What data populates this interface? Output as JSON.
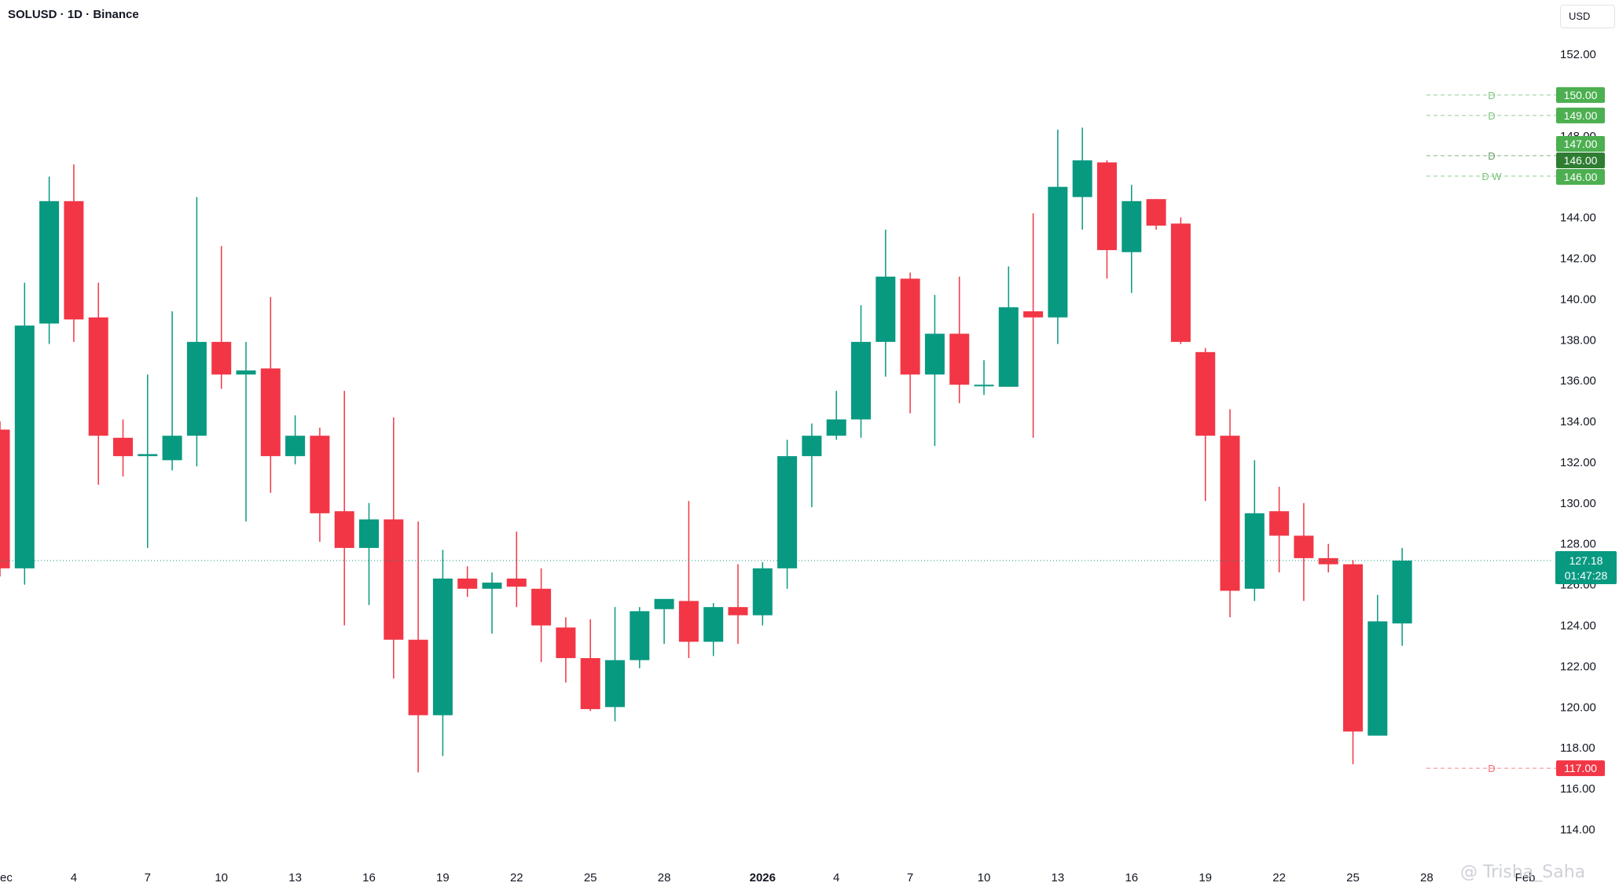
{
  "header": {
    "symbol_line": "SOLUSD · 1D · Binance"
  },
  "price_scale": {
    "currency_label": "USD"
  },
  "watermark": {
    "text": "@ Trisha_Saha"
  },
  "colors": {
    "up": "#089981",
    "down": "#f23645",
    "alert_green": "#4caf50",
    "alert_green_dark": "#2e7d32",
    "alert_red": "#f23645",
    "text": "#131722",
    "axis_text": "#131722"
  },
  "chart_data": {
    "type": "candlestick",
    "symbol": "SOLUSD",
    "interval": "1D",
    "exchange": "Binance",
    "ylim": [
      113,
      154
    ],
    "y_ticks": [
      "114.00",
      "116.00",
      "118.00",
      "120.00",
      "122.00",
      "124.00",
      "126.00",
      "128.00",
      "130.00",
      "132.00",
      "134.00",
      "136.00",
      "138.00",
      "140.00",
      "142.00",
      "144.00",
      "146.00",
      "148.00",
      "150.00",
      "152.00"
    ],
    "x_ticks": [
      {
        "i": 0.5,
        "label": "ec"
      },
      {
        "i": 3,
        "label": "4"
      },
      {
        "i": 6,
        "label": "7"
      },
      {
        "i": 9,
        "label": "10"
      },
      {
        "i": 12,
        "label": "13"
      },
      {
        "i": 15,
        "label": "16"
      },
      {
        "i": 18,
        "label": "19"
      },
      {
        "i": 21,
        "label": "22"
      },
      {
        "i": 24,
        "label": "25"
      },
      {
        "i": 27,
        "label": "28"
      },
      {
        "i": 31,
        "label": "2026"
      },
      {
        "i": 34,
        "label": "4"
      },
      {
        "i": 37,
        "label": "7"
      },
      {
        "i": 40,
        "label": "10"
      },
      {
        "i": 43,
        "label": "13"
      },
      {
        "i": 46,
        "label": "16"
      },
      {
        "i": 49,
        "label": "19"
      },
      {
        "i": 52,
        "label": "22"
      },
      {
        "i": 55,
        "label": "25"
      },
      {
        "i": 58,
        "label": "28"
      },
      {
        "i": 62,
        "label": "Feb"
      }
    ],
    "candles": [
      {
        "o": 133.6,
        "h": 134.0,
        "l": 126.4,
        "c": 126.8
      },
      {
        "o": 126.8,
        "h": 140.8,
        "l": 126.0,
        "c": 138.7
      },
      {
        "o": 138.8,
        "h": 146.0,
        "l": 137.8,
        "c": 144.8
      },
      {
        "o": 144.8,
        "h": 146.6,
        "l": 137.9,
        "c": 139.0
      },
      {
        "o": 139.1,
        "h": 140.8,
        "l": 130.9,
        "c": 133.3
      },
      {
        "o": 133.2,
        "h": 134.1,
        "l": 131.3,
        "c": 132.3
      },
      {
        "o": 132.3,
        "h": 136.3,
        "l": 127.8,
        "c": 132.4
      },
      {
        "o": 132.1,
        "h": 139.4,
        "l": 131.6,
        "c": 133.3
      },
      {
        "o": 133.3,
        "h": 145.0,
        "l": 131.8,
        "c": 137.9
      },
      {
        "o": 137.9,
        "h": 142.6,
        "l": 135.6,
        "c": 136.3
      },
      {
        "o": 136.3,
        "h": 137.9,
        "l": 129.1,
        "c": 136.5
      },
      {
        "o": 136.6,
        "h": 140.1,
        "l": 130.5,
        "c": 132.3
      },
      {
        "o": 132.3,
        "h": 134.3,
        "l": 131.9,
        "c": 133.3
      },
      {
        "o": 133.3,
        "h": 133.7,
        "l": 128.1,
        "c": 129.5
      },
      {
        "o": 129.6,
        "h": 135.5,
        "l": 124.0,
        "c": 127.8
      },
      {
        "o": 127.8,
        "h": 130.0,
        "l": 125.0,
        "c": 129.2
      },
      {
        "o": 129.2,
        "h": 134.2,
        "l": 121.4,
        "c": 123.3
      },
      {
        "o": 123.3,
        "h": 129.1,
        "l": 116.8,
        "c": 119.6
      },
      {
        "o": 119.6,
        "h": 127.7,
        "l": 117.6,
        "c": 126.3
      },
      {
        "o": 126.3,
        "h": 126.9,
        "l": 125.4,
        "c": 125.8
      },
      {
        "o": 125.8,
        "h": 126.6,
        "l": 123.6,
        "c": 126.1
      },
      {
        "o": 126.3,
        "h": 128.6,
        "l": 124.9,
        "c": 125.9
      },
      {
        "o": 125.8,
        "h": 126.8,
        "l": 122.2,
        "c": 124.0
      },
      {
        "o": 123.9,
        "h": 124.4,
        "l": 121.2,
        "c": 122.4
      },
      {
        "o": 122.4,
        "h": 124.3,
        "l": 119.8,
        "c": 119.9
      },
      {
        "o": 120.0,
        "h": 124.9,
        "l": 119.3,
        "c": 122.3
      },
      {
        "o": 122.3,
        "h": 124.9,
        "l": 121.9,
        "c": 124.7
      },
      {
        "o": 124.8,
        "h": 125.3,
        "l": 123.1,
        "c": 125.3
      },
      {
        "o": 125.2,
        "h": 130.1,
        "l": 122.4,
        "c": 123.2
      },
      {
        "o": 123.2,
        "h": 125.1,
        "l": 122.5,
        "c": 124.9
      },
      {
        "o": 124.9,
        "h": 127.0,
        "l": 123.1,
        "c": 124.5
      },
      {
        "o": 124.5,
        "h": 127.1,
        "l": 124.0,
        "c": 126.8
      },
      {
        "o": 126.8,
        "h": 133.1,
        "l": 125.8,
        "c": 132.3
      },
      {
        "o": 132.3,
        "h": 133.9,
        "l": 129.8,
        "c": 133.3
      },
      {
        "o": 133.3,
        "h": 135.5,
        "l": 133.1,
        "c": 134.1
      },
      {
        "o": 134.1,
        "h": 139.7,
        "l": 133.2,
        "c": 137.9
      },
      {
        "o": 137.9,
        "h": 143.4,
        "l": 136.2,
        "c": 141.1
      },
      {
        "o": 141.0,
        "h": 141.3,
        "l": 134.4,
        "c": 136.3
      },
      {
        "o": 136.3,
        "h": 140.2,
        "l": 132.8,
        "c": 138.3
      },
      {
        "o": 138.3,
        "h": 141.1,
        "l": 134.9,
        "c": 135.8
      },
      {
        "o": 135.8,
        "h": 137.0,
        "l": 135.3,
        "c": 135.8
      },
      {
        "o": 135.7,
        "h": 141.6,
        "l": 135.7,
        "c": 139.6
      },
      {
        "o": 139.4,
        "h": 144.2,
        "l": 133.2,
        "c": 139.1
      },
      {
        "o": 139.1,
        "h": 148.3,
        "l": 137.8,
        "c": 145.5
      },
      {
        "o": 145.0,
        "h": 148.4,
        "l": 143.4,
        "c": 146.8
      },
      {
        "o": 146.7,
        "h": 146.8,
        "l": 141.0,
        "c": 142.4
      },
      {
        "o": 142.3,
        "h": 145.6,
        "l": 140.3,
        "c": 144.8
      },
      {
        "o": 144.9,
        "h": 144.9,
        "l": 143.4,
        "c": 143.6
      },
      {
        "o": 143.7,
        "h": 144.0,
        "l": 137.8,
        "c": 137.9
      },
      {
        "o": 137.4,
        "h": 137.6,
        "l": 130.1,
        "c": 133.3
      },
      {
        "o": 133.3,
        "h": 134.6,
        "l": 124.4,
        "c": 125.7
      },
      {
        "o": 125.8,
        "h": 132.1,
        "l": 125.2,
        "c": 129.5
      },
      {
        "o": 129.6,
        "h": 130.8,
        "l": 126.6,
        "c": 128.4
      },
      {
        "o": 128.4,
        "h": 130.0,
        "l": 125.2,
        "c": 127.3
      },
      {
        "o": 127.3,
        "h": 128.0,
        "l": 126.6,
        "c": 127.0
      },
      {
        "o": 127.0,
        "h": 127.2,
        "l": 117.2,
        "c": 118.8
      },
      {
        "o": 118.6,
        "h": 125.5,
        "l": 118.6,
        "c": 124.2
      },
      {
        "o": 124.1,
        "h": 127.8,
        "l": 123.0,
        "c": 127.18
      }
    ],
    "last_price": {
      "value": 127.18,
      "label": "127.18",
      "countdown": "01:47:28"
    },
    "alert_levels": [
      {
        "value": 150.0,
        "label": "150.00",
        "tag": "D",
        "kind": "green"
      },
      {
        "value": 149.0,
        "label": "149.00",
        "tag": "D",
        "kind": "green"
      },
      {
        "value": 147.0,
        "label": "147.00",
        "tag": "",
        "kind": "green"
      },
      {
        "value": 146.0,
        "label": "146.00",
        "tag": "D",
        "kind": "green_dark"
      },
      {
        "value": 146.0,
        "label": "146.00",
        "tag": "D W",
        "kind": "green"
      },
      {
        "value": 117.0,
        "label": "117.00",
        "tag": "D",
        "kind": "red"
      }
    ],
    "grid": false
  }
}
